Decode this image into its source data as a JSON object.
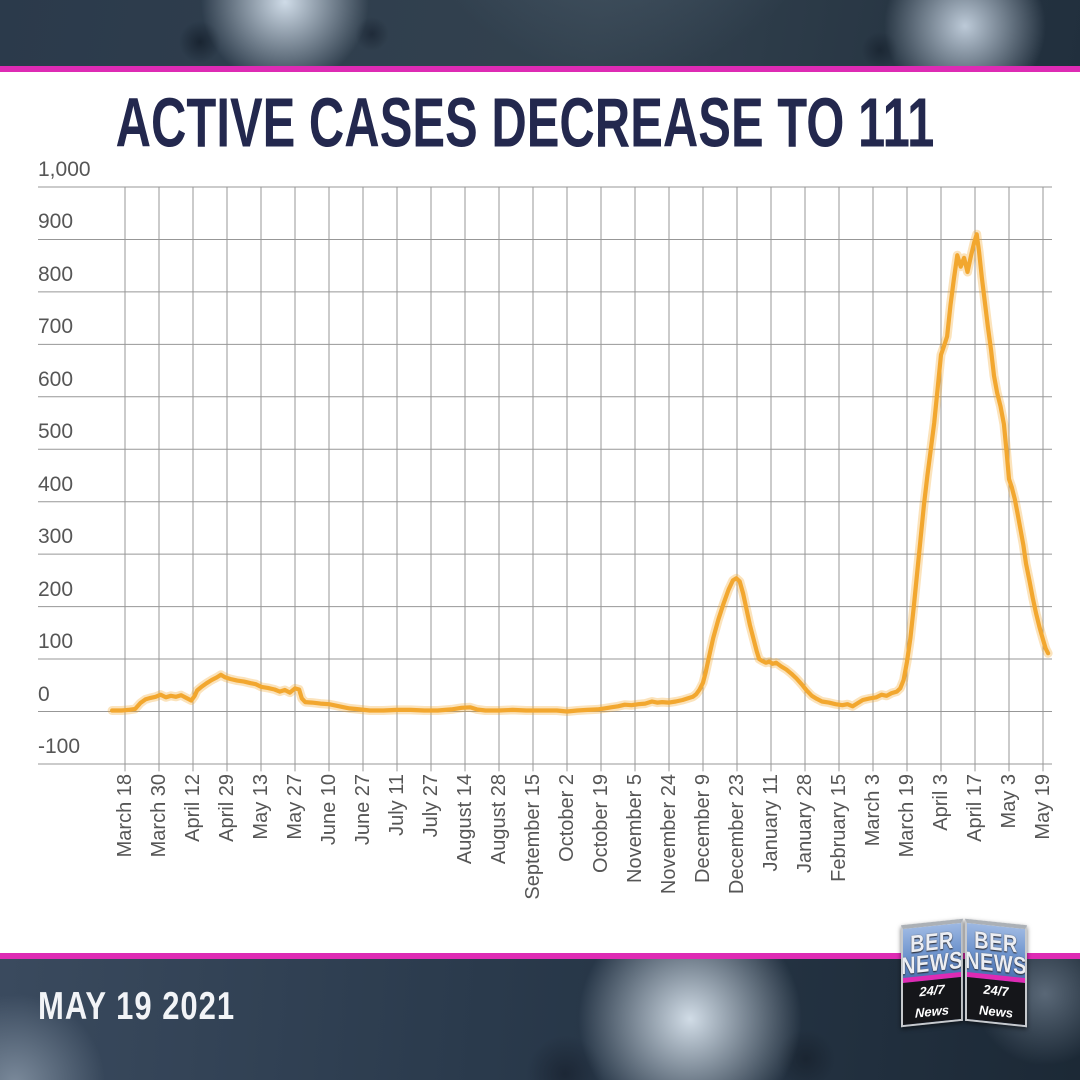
{
  "page": {
    "title": "ACTIVE CASES DECREASE TO 111",
    "date_label": "MAY 19 2021"
  },
  "logo": {
    "name_top": "BER",
    "name_bottom": "NEWS",
    "tagline": "24/7 News"
  },
  "colors": {
    "accent_magenta": "#DE2BB4",
    "line_amber": "#F2A72F",
    "title_navy": "#23284E",
    "grid_gray": "#979797",
    "tick_gray": "#565656"
  },
  "chart_data": {
    "type": "line",
    "title": "ACTIVE CASES DECREASE TO 111",
    "xlabel": "",
    "ylabel": "",
    "ylim": [
      -100,
      1000
    ],
    "grid": true,
    "legend": false,
    "y_ticks": [
      {
        "label": "1,000",
        "value": 1000
      },
      {
        "label": "900",
        "value": 900
      },
      {
        "label": "800",
        "value": 800
      },
      {
        "label": "700",
        "value": 700
      },
      {
        "label": "600",
        "value": 600
      },
      {
        "label": "500",
        "value": 500
      },
      {
        "label": "400",
        "value": 400
      },
      {
        "label": "300",
        "value": 300
      },
      {
        "label": "200",
        "value": 200
      },
      {
        "label": "100",
        "value": 100
      },
      {
        "label": "0",
        "value": 0
      },
      {
        "label": "-100",
        "value": -100
      }
    ],
    "x_tick_labels": [
      "March 18",
      "March 30",
      "April 12",
      "April 29",
      "May 13",
      "May 27",
      "June 10",
      "June 27",
      "July 11",
      "July 27",
      "August 14",
      "August 28",
      "September 15",
      "October 2",
      "October 19",
      "November 5",
      "November 24",
      "December 9",
      "December 23",
      "January 11",
      "January 28",
      "February 15",
      "March 3",
      "March 19",
      "April 3",
      "April 17",
      "May 3",
      "May 19"
    ],
    "series": [
      {
        "name": "Active cases",
        "color": "#F2A72F",
        "points": [
          [
            -0.38,
            2
          ],
          [
            -0.1,
            2
          ],
          [
            0.1,
            3
          ],
          [
            0.3,
            5
          ],
          [
            0.45,
            16
          ],
          [
            0.6,
            23
          ],
          [
            0.75,
            26
          ],
          [
            0.9,
            28
          ],
          [
            1.05,
            32
          ],
          [
            1.2,
            27
          ],
          [
            1.35,
            30
          ],
          [
            1.5,
            28
          ],
          [
            1.65,
            31
          ],
          [
            1.8,
            26
          ],
          [
            1.95,
            21
          ],
          [
            2.05,
            30
          ],
          [
            2.12,
            40
          ],
          [
            2.25,
            47
          ],
          [
            2.4,
            54
          ],
          [
            2.55,
            60
          ],
          [
            2.7,
            65
          ],
          [
            2.82,
            70
          ],
          [
            2.95,
            65
          ],
          [
            3.1,
            62
          ],
          [
            3.3,
            59
          ],
          [
            3.5,
            57
          ],
          [
            3.7,
            54
          ],
          [
            3.85,
            52
          ],
          [
            4,
            47
          ],
          [
            4.2,
            45
          ],
          [
            4.4,
            42
          ],
          [
            4.55,
            38
          ],
          [
            4.7,
            41
          ],
          [
            4.85,
            36
          ],
          [
            5,
            44
          ],
          [
            5.12,
            42
          ],
          [
            5.2,
            25
          ],
          [
            5.3,
            18
          ],
          [
            5.5,
            17
          ],
          [
            5.75,
            15
          ],
          [
            6,
            14
          ],
          [
            6.3,
            10
          ],
          [
            6.6,
            6
          ],
          [
            6.9,
            4
          ],
          [
            7.2,
            2
          ],
          [
            7.6,
            2
          ],
          [
            8,
            3
          ],
          [
            8.4,
            3
          ],
          [
            8.8,
            2
          ],
          [
            9.2,
            2
          ],
          [
            9.6,
            4
          ],
          [
            9.9,
            7
          ],
          [
            10.15,
            8
          ],
          [
            10.35,
            4
          ],
          [
            10.6,
            2
          ],
          [
            11,
            2
          ],
          [
            11.4,
            3
          ],
          [
            11.8,
            2
          ],
          [
            12.3,
            2
          ],
          [
            12.7,
            2
          ],
          [
            13,
            0
          ],
          [
            13.3,
            2
          ],
          [
            13.6,
            3
          ],
          [
            13.9,
            4
          ],
          [
            14.1,
            6
          ],
          [
            14.3,
            8
          ],
          [
            14.5,
            10
          ],
          [
            14.7,
            13
          ],
          [
            14.9,
            12
          ],
          [
            15.1,
            14
          ],
          [
            15.3,
            15
          ],
          [
            15.5,
            19
          ],
          [
            15.65,
            17
          ],
          [
            15.8,
            18
          ],
          [
            16,
            17
          ],
          [
            16.2,
            19
          ],
          [
            16.4,
            22
          ],
          [
            16.55,
            25
          ],
          [
            16.7,
            28
          ],
          [
            16.8,
            33
          ],
          [
            16.9,
            42
          ],
          [
            17,
            55
          ],
          [
            17.08,
            75
          ],
          [
            17.18,
            105
          ],
          [
            17.3,
            140
          ],
          [
            17.45,
            175
          ],
          [
            17.6,
            205
          ],
          [
            17.75,
            232
          ],
          [
            17.88,
            250
          ],
          [
            17.98,
            254
          ],
          [
            18.08,
            248
          ],
          [
            18.18,
            225
          ],
          [
            18.28,
            195
          ],
          [
            18.38,
            165
          ],
          [
            18.48,
            140
          ],
          [
            18.58,
            115
          ],
          [
            18.65,
            100
          ],
          [
            18.75,
            96
          ],
          [
            18.85,
            93
          ],
          [
            18.95,
            95
          ],
          [
            19.05,
            91
          ],
          [
            19.15,
            93
          ],
          [
            19.3,
            86
          ],
          [
            19.45,
            80
          ],
          [
            19.6,
            72
          ],
          [
            19.75,
            63
          ],
          [
            19.9,
            52
          ],
          [
            20.05,
            40
          ],
          [
            20.2,
            30
          ],
          [
            20.35,
            24
          ],
          [
            20.5,
            19
          ],
          [
            20.7,
            17
          ],
          [
            20.9,
            14
          ],
          [
            21.1,
            12
          ],
          [
            21.25,
            14
          ],
          [
            21.4,
            10
          ],
          [
            21.55,
            16
          ],
          [
            21.7,
            22
          ],
          [
            21.9,
            25
          ],
          [
            22.1,
            27
          ],
          [
            22.25,
            32
          ],
          [
            22.4,
            30
          ],
          [
            22.55,
            35
          ],
          [
            22.7,
            38
          ],
          [
            22.8,
            44
          ],
          [
            22.9,
            60
          ],
          [
            23,
            95
          ],
          [
            23.1,
            140
          ],
          [
            23.2,
            200
          ],
          [
            23.3,
            265
          ],
          [
            23.4,
            330
          ],
          [
            23.5,
            395
          ],
          [
            23.6,
            450
          ],
          [
            23.7,
            500
          ],
          [
            23.8,
            550
          ],
          [
            23.9,
            615
          ],
          [
            24,
            680
          ],
          [
            24.08,
            695
          ],
          [
            24.18,
            715
          ],
          [
            24.28,
            775
          ],
          [
            24.38,
            825
          ],
          [
            24.48,
            870
          ],
          [
            24.58,
            848
          ],
          [
            24.68,
            865
          ],
          [
            24.78,
            838
          ],
          [
            24.88,
            868
          ],
          [
            24.98,
            895
          ],
          [
            25.05,
            910
          ],
          [
            25.12,
            876
          ],
          [
            25.2,
            828
          ],
          [
            25.3,
            775
          ],
          [
            25.38,
            733
          ],
          [
            25.47,
            690
          ],
          [
            25.56,
            640
          ],
          [
            25.65,
            608
          ],
          [
            25.75,
            582
          ],
          [
            25.85,
            548
          ],
          [
            25.93,
            495
          ],
          [
            26,
            443
          ],
          [
            26.08,
            428
          ],
          [
            26.17,
            405
          ],
          [
            26.25,
            378
          ],
          [
            26.33,
            350
          ],
          [
            26.42,
            318
          ],
          [
            26.5,
            282
          ],
          [
            26.6,
            250
          ],
          [
            26.7,
            216
          ],
          [
            26.8,
            186
          ],
          [
            26.9,
            160
          ],
          [
            27,
            137
          ],
          [
            27.08,
            120
          ],
          [
            27.15,
            111
          ]
        ]
      }
    ]
  }
}
